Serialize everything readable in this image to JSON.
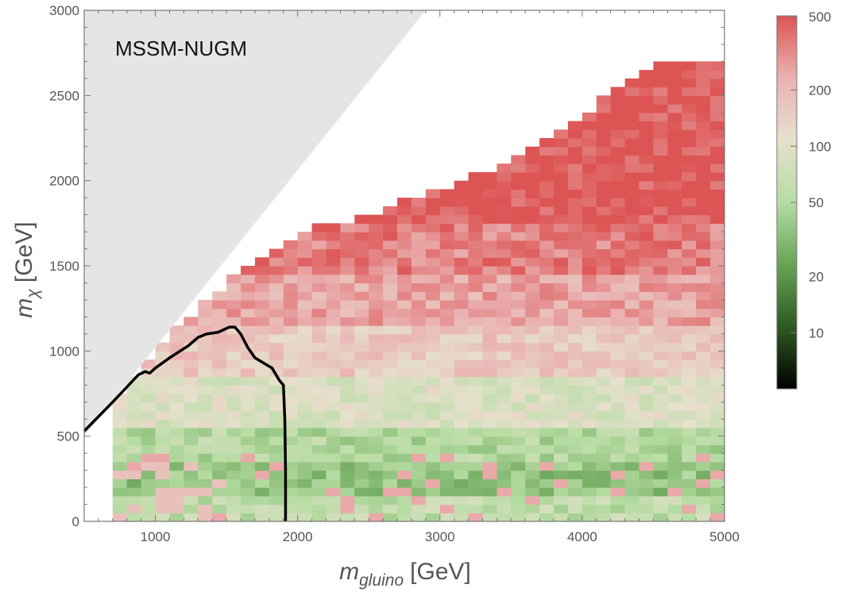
{
  "chart_data": {
    "type": "heatmap",
    "title": "MSSM-NUGM",
    "xlabel": {
      "symbol": "m",
      "subscript": "gluino",
      "unit": "[GeV]"
    },
    "ylabel": {
      "symbol": "m",
      "subscript": "χ",
      "unit": "[GeV]"
    },
    "xlim": [
      500,
      5000
    ],
    "ylim": [
      0,
      3000
    ],
    "xticks": [
      1000,
      2000,
      3000,
      4000,
      5000
    ],
    "yticks": [
      0,
      500,
      1000,
      1500,
      2000,
      2500,
      3000
    ],
    "grid": false,
    "colorbar": {
      "scale": "log",
      "range": [
        5,
        500
      ],
      "ticks": [
        10,
        20,
        50,
        100,
        200,
        500
      ],
      "colors": [
        "#000000",
        "#2f5a22",
        "#67a455",
        "#b6dca3",
        "#e6e0cc",
        "#eab2b2",
        "#dd5454"
      ],
      "placement": "right"
    },
    "excluded_region": {
      "description_color": "#e5e5e5",
      "boundary": [
        [
          500,
          500
        ],
        [
          500,
          3000
        ],
        [
          2900,
          3000
        ],
        [
          500,
          500
        ]
      ]
    },
    "contour": {
      "color": "#000000",
      "points": [
        [
          500,
          530
        ],
        [
          700,
          700
        ],
        [
          880,
          860
        ],
        [
          930,
          880
        ],
        [
          960,
          870
        ],
        [
          1000,
          900
        ],
        [
          1100,
          960
        ],
        [
          1230,
          1030
        ],
        [
          1300,
          1080
        ],
        [
          1360,
          1100
        ],
        [
          1440,
          1110
        ],
        [
          1520,
          1140
        ],
        [
          1560,
          1140
        ],
        [
          1600,
          1100
        ],
        [
          1650,
          1020
        ],
        [
          1700,
          960
        ],
        [
          1760,
          930
        ],
        [
          1820,
          900
        ],
        [
          1870,
          830
        ],
        [
          1900,
          800
        ],
        [
          1910,
          600
        ],
        [
          1915,
          300
        ],
        [
          1915,
          0
        ]
      ]
    },
    "grid_cells": {
      "dx": 100,
      "dy": 50,
      "value_by_band": [
        {
          "y": [
            0,
            150
          ],
          "value": 60
        },
        {
          "y": [
            150,
            350
          ],
          "value": 35
        },
        {
          "y": [
            350,
            550
          ],
          "value": 50
        },
        {
          "y": [
            550,
            850
          ],
          "value": 90
        },
        {
          "y": [
            850,
            1150
          ],
          "value": 160
        },
        {
          "y": [
            1150,
            1450
          ],
          "value": 250
        },
        {
          "y": [
            1450,
            1750
          ],
          "value": 350
        },
        {
          "y": [
            1750,
            2800
          ],
          "value": 500
        }
      ],
      "upper_boundary_by_x": [
        [
          500,
          0
        ],
        [
          700,
          650
        ],
        [
          800,
          800
        ],
        [
          1200,
          1150
        ],
        [
          1400,
          1300
        ],
        [
          1600,
          1450
        ],
        [
          2100,
          1700
        ],
        [
          2400,
          1750
        ],
        [
          2900,
          1900
        ],
        [
          3400,
          2050
        ],
        [
          3900,
          2300
        ],
        [
          4200,
          2500
        ],
        [
          4500,
          2650
        ],
        [
          4800,
          2700
        ],
        [
          5000,
          2650
        ]
      ]
    }
  }
}
